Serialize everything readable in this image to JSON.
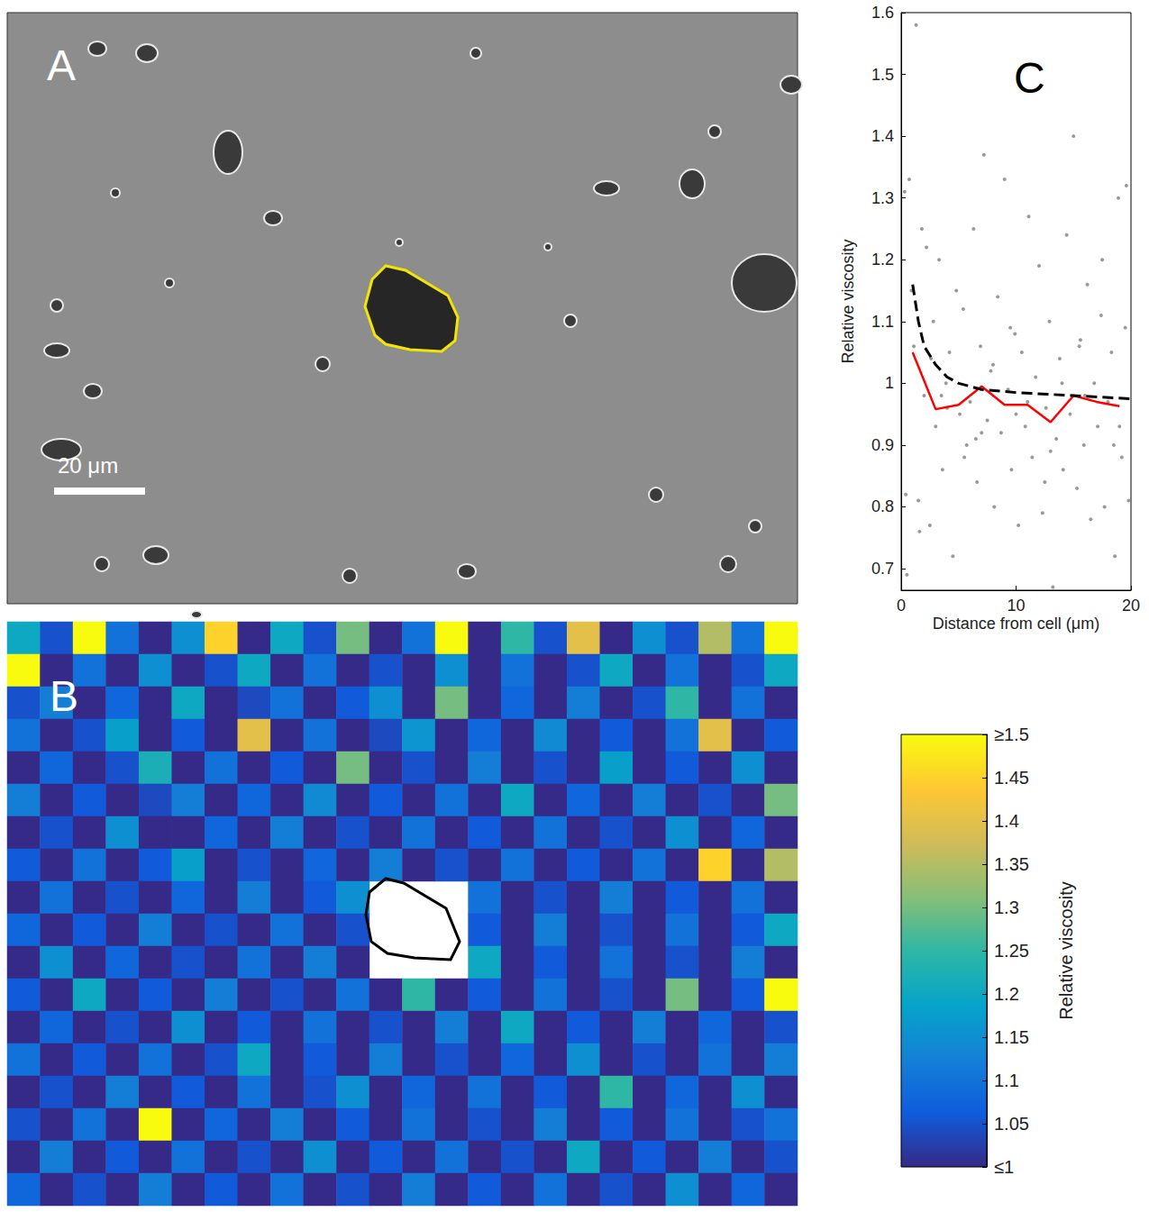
{
  "chart_data": [
    {
      "type": "image",
      "title": "A",
      "annotations": [
        "20 μm"
      ]
    },
    {
      "type": "heatmap",
      "title": "B",
      "cells": [
        [
          1.2,
          1.05,
          1.5,
          1.1,
          1.0,
          1.15,
          1.45,
          1.0,
          1.2,
          1.05,
          1.3,
          1.0,
          1.1,
          1.5,
          1.0,
          1.25,
          1.05,
          1.4,
          1.0,
          1.15,
          1.05,
          1.35,
          1.1,
          1.5
        ],
        [
          1.5,
          1.0,
          1.1,
          1.0,
          1.15,
          1.0,
          1.05,
          1.2,
          1.0,
          1.1,
          1.0,
          1.05,
          1.0,
          1.15,
          1.0,
          1.1,
          1.0,
          1.05,
          1.2,
          1.0,
          1.1,
          1.0,
          1.05,
          1.2
        ],
        [
          1.05,
          1.12,
          1.0,
          1.08,
          1.0,
          1.2,
          1.0,
          1.04,
          1.1,
          1.0,
          1.06,
          1.15,
          1.0,
          1.3,
          1.0,
          1.08,
          1.0,
          1.12,
          1.0,
          1.05,
          1.25,
          1.0,
          1.1,
          1.0
        ],
        [
          1.1,
          1.0,
          1.05,
          1.18,
          1.0,
          1.06,
          1.0,
          1.4,
          1.0,
          1.1,
          1.0,
          1.04,
          1.16,
          1.0,
          1.08,
          1.0,
          1.14,
          1.0,
          1.06,
          1.0,
          1.1,
          1.4,
          1.0,
          1.06
        ],
        [
          1.0,
          1.08,
          1.0,
          1.05,
          1.22,
          1.0,
          1.1,
          1.0,
          1.06,
          1.0,
          1.3,
          1.0,
          1.05,
          1.0,
          1.12,
          1.0,
          1.05,
          1.0,
          1.18,
          1.0,
          1.06,
          1.0,
          1.15,
          1.0
        ],
        [
          1.12,
          1.0,
          1.06,
          1.0,
          1.04,
          1.12,
          1.0,
          1.08,
          1.0,
          1.14,
          1.0,
          1.06,
          1.0,
          1.1,
          1.0,
          1.2,
          1.0,
          1.08,
          1.0,
          1.12,
          1.0,
          1.05,
          1.0,
          1.3
        ],
        [
          1.0,
          1.05,
          1.0,
          1.15,
          1.0,
          1.0,
          1.08,
          1.0,
          1.12,
          1.0,
          1.05,
          1.0,
          1.1,
          1.0,
          1.06,
          1.0,
          1.1,
          1.0,
          1.05,
          1.0,
          1.15,
          1.0,
          1.08,
          1.0
        ],
        [
          1.06,
          1.0,
          1.1,
          1.0,
          1.06,
          1.18,
          1.0,
          1.05,
          1.0,
          1.08,
          1.0,
          1.12,
          1.0,
          1.05,
          1.0,
          1.1,
          1.0,
          1.06,
          1.0,
          1.1,
          1.0,
          1.45,
          1.0,
          1.35
        ],
        [
          1.0,
          1.1,
          1.0,
          1.05,
          1.0,
          1.08,
          1.0,
          1.12,
          1.0,
          1.06,
          1.15,
          null,
          null,
          null,
          1.1,
          1.0,
          1.05,
          1.0,
          1.12,
          1.0,
          1.06,
          1.0,
          1.1,
          1.0
        ],
        [
          1.08,
          1.0,
          1.06,
          1.0,
          1.12,
          1.0,
          1.05,
          1.0,
          1.1,
          1.0,
          1.05,
          null,
          null,
          null,
          1.06,
          1.0,
          1.12,
          1.0,
          1.05,
          1.0,
          1.1,
          1.0,
          1.06,
          1.2
        ],
        [
          1.0,
          1.15,
          1.0,
          1.08,
          1.0,
          1.05,
          1.0,
          1.1,
          1.0,
          1.12,
          1.0,
          null,
          null,
          null,
          1.2,
          1.0,
          1.06,
          1.0,
          1.1,
          1.0,
          1.05,
          1.0,
          1.12,
          1.0
        ],
        [
          1.06,
          1.0,
          1.2,
          1.0,
          1.06,
          1.0,
          1.12,
          1.0,
          1.05,
          1.0,
          1.1,
          1.0,
          1.25,
          1.0,
          1.06,
          1.0,
          1.1,
          1.0,
          1.05,
          1.0,
          1.3,
          1.0,
          1.06,
          1.5
        ],
        [
          1.0,
          1.08,
          1.0,
          1.05,
          1.0,
          1.15,
          1.0,
          1.06,
          1.0,
          1.1,
          1.0,
          1.05,
          1.0,
          1.12,
          1.0,
          1.2,
          1.0,
          1.06,
          1.0,
          1.12,
          1.0,
          1.08,
          1.0,
          1.05
        ],
        [
          1.1,
          1.0,
          1.06,
          1.0,
          1.1,
          1.0,
          1.05,
          1.2,
          1.0,
          1.06,
          1.0,
          1.12,
          1.0,
          1.05,
          1.0,
          1.08,
          1.0,
          1.15,
          1.0,
          1.05,
          1.0,
          1.1,
          1.0,
          1.12
        ],
        [
          1.0,
          1.05,
          1.0,
          1.12,
          1.0,
          1.06,
          1.0,
          1.1,
          1.0,
          1.05,
          1.15,
          1.0,
          1.08,
          1.0,
          1.1,
          1.0,
          1.06,
          1.0,
          1.25,
          1.0,
          1.08,
          1.0,
          1.15,
          1.0
        ],
        [
          1.05,
          1.0,
          1.1,
          1.0,
          1.5,
          1.0,
          1.08,
          1.0,
          1.12,
          1.0,
          1.06,
          1.0,
          1.1,
          1.0,
          1.05,
          1.0,
          1.12,
          1.0,
          1.06,
          1.0,
          1.1,
          1.0,
          1.05,
          1.1
        ],
        [
          1.0,
          1.12,
          1.0,
          1.06,
          1.0,
          1.1,
          1.0,
          1.05,
          1.0,
          1.15,
          1.0,
          1.06,
          1.0,
          1.1,
          1.0,
          1.05,
          1.0,
          1.2,
          1.0,
          1.06,
          1.0,
          1.12,
          1.0,
          1.05
        ],
        [
          1.08,
          1.0,
          1.05,
          1.0,
          1.12,
          1.0,
          1.06,
          1.0,
          1.1,
          1.0,
          1.05,
          1.0,
          1.12,
          1.0,
          1.06,
          1.0,
          1.1,
          1.0,
          1.05,
          1.0,
          1.15,
          1.0,
          1.08,
          1.0
        ]
      ],
      "colorbar": {
        "title": "Relative viscosity",
        "range": [
          1,
          1.5
        ],
        "ticks": [
          {
            "value": 1,
            "label": "≤1"
          },
          1.05,
          1.1,
          1.15,
          1.2,
          1.25,
          1.3,
          1.35,
          1.4,
          1.45,
          {
            "value": 1.5,
            "label": "≥1.5"
          }
        ],
        "colors": [
          "#352a87",
          "#0f5cdd",
          "#1481d6",
          "#06a4ca",
          "#2eb7a4",
          "#87bf77",
          "#d1bb59",
          "#fec832",
          "#f9fb0e"
        ]
      }
    },
    {
      "type": "scatter",
      "title": "C",
      "x_label": "Distance from cell (μm)",
      "y_label": "Relative viscosity",
      "xlim": [
        0,
        20
      ],
      "xticks": [
        0,
        10,
        20
      ],
      "ylim": [
        0.665,
        1.6
      ],
      "yticks": [
        0.7,
        0.8,
        0.9,
        1,
        1.1,
        1.2,
        1.3,
        1.4,
        1.5,
        1.6
      ],
      "series": [
        {
          "type": "scatter",
          "color": "#808080",
          "marker": "circle",
          "x": [
            0.3,
            0.5,
            0.7,
            0.9,
            1.1,
            1.3,
            1.5,
            1.8,
            2.0,
            2.2,
            2.5,
            2.8,
            3.0,
            3.3,
            3.6,
            3.9,
            4.2,
            4.5,
            4.8,
            5.1,
            5.4,
            5.7,
            6.0,
            6.3,
            6.6,
            6.9,
            7.2,
            7.5,
            7.8,
            8.1,
            8.4,
            8.7,
            9.0,
            9.3,
            9.6,
            9.9,
            10.2,
            10.5,
            10.8,
            11.1,
            11.4,
            11.7,
            12.0,
            12.3,
            12.6,
            12.9,
            13.2,
            13.5,
            13.8,
            14.1,
            14.4,
            14.7,
            15.0,
            15.3,
            15.6,
            15.9,
            16.2,
            16.5,
            16.8,
            17.1,
            17.4,
            17.7,
            18.0,
            18.3,
            18.6,
            18.9,
            19.2,
            19.5,
            19.8,
            0.4,
            1.6,
            2.6,
            4.0,
            6.5,
            8.0,
            10.0,
            12.5,
            14.0,
            16.0,
            17.5,
            19.0,
            19.6,
            3.5,
            5.5,
            7.0,
            9.5,
            11.0,
            13.0,
            15.5,
            18.5
          ],
          "values": [
            1.31,
            0.69,
            1.33,
            1.15,
            1.06,
            1.58,
            0.81,
            1.25,
            0.98,
            1.22,
            0.77,
            1.1,
            0.93,
            1.2,
            0.86,
            1.0,
            1.05,
            0.72,
            1.15,
            0.95,
            1.12,
            0.9,
            0.97,
            1.25,
            0.84,
            1.06,
            1.37,
            0.94,
            1.02,
            0.8,
            1.14,
            0.92,
            1.33,
            0.99,
            0.86,
            1.08,
            0.77,
            1.05,
            0.93,
            1.27,
            0.88,
            1.01,
            1.19,
            0.79,
            0.96,
            1.1,
            0.67,
            0.91,
            1.04,
            0.86,
            1.24,
            0.95,
            1.4,
            0.83,
            1.07,
            0.9,
            1.16,
            0.78,
            1.0,
            0.93,
            1.11,
            0.8,
            0.97,
            1.05,
            0.72,
            1.3,
            0.88,
            1.09,
            0.81,
            0.82,
            0.76,
            1.04,
            0.96,
            0.91,
            1.03,
            0.95,
            0.84,
            1.0,
            0.98,
            1.2,
            0.93,
            1.32,
            0.98,
            0.88,
            0.92,
            1.09,
            0.97,
            0.89,
            1.06,
            0.9
          ]
        },
        {
          "type": "line",
          "color": "#ff0000",
          "line_style": "solid",
          "x": [
            1,
            3,
            5,
            7,
            9,
            11,
            13,
            15,
            17,
            19
          ],
          "values": [
            1.05,
            0.958,
            0.965,
            0.995,
            0.965,
            0.965,
            0.937,
            0.98,
            0.97,
            0.963
          ]
        },
        {
          "type": "line",
          "color": "#000000",
          "line_style": "dashed",
          "x": [
            1,
            1.5,
            2,
            3,
            4,
            5,
            7,
            10,
            15,
            20
          ],
          "values": [
            1.16,
            1.1,
            1.06,
            1.03,
            1.01,
            1.0,
            0.99,
            0.985,
            0.98,
            0.975
          ]
        }
      ]
    }
  ]
}
